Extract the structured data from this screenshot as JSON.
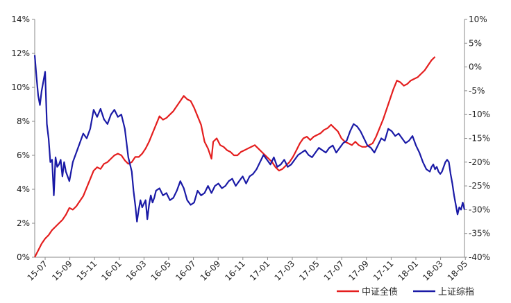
{
  "chart_data": {
    "type": "line",
    "x_categories": [
      "15-07",
      "15-09",
      "15-11",
      "16-01",
      "16-03",
      "16-05",
      "16-07",
      "16-09",
      "16-11",
      "17-01",
      "17-03",
      "17-05",
      "17-07",
      "17-09",
      "17-11",
      "18-01",
      "18-03",
      "18-05"
    ],
    "y_left": {
      "min": 0,
      "max": 14,
      "step": 2,
      "unit": "%",
      "ticks": [
        "0%",
        "2%",
        "4%",
        "6%",
        "8%",
        "10%",
        "12%",
        "14%"
      ]
    },
    "y_right": {
      "min": -40,
      "max": 10,
      "step": 5,
      "unit": "%",
      "ticks": [
        "-40%",
        "-35%",
        "-30%",
        "-25%",
        "-20%",
        "-15%",
        "-10%",
        "-5%",
        "0%",
        "5%",
        "10%"
      ]
    },
    "series": [
      {
        "name": "中证全债",
        "axis": "left",
        "color": "#e41e1e",
        "points": [
          [
            0,
            0.0
          ],
          [
            0.2,
            0.4
          ],
          [
            0.4,
            0.8
          ],
          [
            0.6,
            1.1
          ],
          [
            0.8,
            1.3
          ],
          [
            1.0,
            1.6
          ],
          [
            1.2,
            1.8
          ],
          [
            1.4,
            2.0
          ],
          [
            1.6,
            2.2
          ],
          [
            1.8,
            2.5
          ],
          [
            2.0,
            2.9
          ],
          [
            2.2,
            2.8
          ],
          [
            2.4,
            3.0
          ],
          [
            2.6,
            3.3
          ],
          [
            2.8,
            3.6
          ],
          [
            3.0,
            4.1
          ],
          [
            3.2,
            4.6
          ],
          [
            3.4,
            5.1
          ],
          [
            3.6,
            5.3
          ],
          [
            3.8,
            5.2
          ],
          [
            4.0,
            5.5
          ],
          [
            4.2,
            5.6
          ],
          [
            4.4,
            5.8
          ],
          [
            4.6,
            6.0
          ],
          [
            4.8,
            6.1
          ],
          [
            5.0,
            6.0
          ],
          [
            5.2,
            5.7
          ],
          [
            5.4,
            5.5
          ],
          [
            5.6,
            5.6
          ],
          [
            5.8,
            5.9
          ],
          [
            6.0,
            5.9
          ],
          [
            6.2,
            6.1
          ],
          [
            6.4,
            6.4
          ],
          [
            6.6,
            6.8
          ],
          [
            6.8,
            7.3
          ],
          [
            7.0,
            7.8
          ],
          [
            7.2,
            8.3
          ],
          [
            7.4,
            8.1
          ],
          [
            7.6,
            8.2
          ],
          [
            7.8,
            8.4
          ],
          [
            8.0,
            8.6
          ],
          [
            8.2,
            8.9
          ],
          [
            8.4,
            9.2
          ],
          [
            8.6,
            9.5
          ],
          [
            8.8,
            9.3
          ],
          [
            9.0,
            9.2
          ],
          [
            9.2,
            8.8
          ],
          [
            9.4,
            8.3
          ],
          [
            9.6,
            7.8
          ],
          [
            9.8,
            6.8
          ],
          [
            10.0,
            6.4
          ],
          [
            10.2,
            5.8
          ],
          [
            10.3,
            6.8
          ],
          [
            10.5,
            7.0
          ],
          [
            10.7,
            6.6
          ],
          [
            10.9,
            6.5
          ],
          [
            11.1,
            6.3
          ],
          [
            11.3,
            6.2
          ],
          [
            11.5,
            6.0
          ],
          [
            11.7,
            6.0
          ],
          [
            11.9,
            6.2
          ],
          [
            12.1,
            6.3
          ],
          [
            12.3,
            6.4
          ],
          [
            12.5,
            6.5
          ],
          [
            12.7,
            6.6
          ],
          [
            12.9,
            6.4
          ],
          [
            13.1,
            6.2
          ],
          [
            13.3,
            6.0
          ],
          [
            13.5,
            5.8
          ],
          [
            13.7,
            5.6
          ],
          [
            13.9,
            5.3
          ],
          [
            14.1,
            5.1
          ],
          [
            14.3,
            5.2
          ],
          [
            14.5,
            5.4
          ],
          [
            14.7,
            5.6
          ],
          [
            14.9,
            5.9
          ],
          [
            15.1,
            6.3
          ],
          [
            15.3,
            6.7
          ],
          [
            15.5,
            7.0
          ],
          [
            15.7,
            7.1
          ],
          [
            15.9,
            6.9
          ],
          [
            16.1,
            7.1
          ],
          [
            16.3,
            7.2
          ],
          [
            16.5,
            7.3
          ],
          [
            16.7,
            7.5
          ],
          [
            16.9,
            7.6
          ],
          [
            17.1,
            7.8
          ],
          [
            17.3,
            7.6
          ],
          [
            17.5,
            7.4
          ],
          [
            17.7,
            7.0
          ],
          [
            17.9,
            6.8
          ],
          [
            18.1,
            6.7
          ],
          [
            18.3,
            6.6
          ],
          [
            18.5,
            6.8
          ],
          [
            18.7,
            6.6
          ],
          [
            18.9,
            6.5
          ],
          [
            19.1,
            6.5
          ],
          [
            19.3,
            6.6
          ],
          [
            19.5,
            6.7
          ],
          [
            19.7,
            7.1
          ],
          [
            19.9,
            7.6
          ],
          [
            20.1,
            8.1
          ],
          [
            20.3,
            8.7
          ],
          [
            20.5,
            9.3
          ],
          [
            20.7,
            9.9
          ],
          [
            20.9,
            10.4
          ],
          [
            21.1,
            10.3
          ],
          [
            21.3,
            10.1
          ],
          [
            21.5,
            10.2
          ],
          [
            21.7,
            10.4
          ],
          [
            21.9,
            10.5
          ],
          [
            22.1,
            10.6
          ],
          [
            22.3,
            10.8
          ],
          [
            22.5,
            11.0
          ],
          [
            22.7,
            11.3
          ],
          [
            22.9,
            11.6
          ],
          [
            23.1,
            11.8
          ]
        ]
      },
      {
        "name": "上证综指",
        "axis": "right",
        "color": "#1a1aa6",
        "points": [
          [
            0,
            2.5
          ],
          [
            0.1,
            -2.0
          ],
          [
            0.2,
            -6.0
          ],
          [
            0.3,
            -8.0
          ],
          [
            0.4,
            -5.0
          ],
          [
            0.5,
            -3.0
          ],
          [
            0.6,
            -1.0
          ],
          [
            0.7,
            -12.0
          ],
          [
            0.8,
            -15.0
          ],
          [
            0.9,
            -20.0
          ],
          [
            1.0,
            -19.5
          ],
          [
            1.1,
            -27.0
          ],
          [
            1.2,
            -19.0
          ],
          [
            1.3,
            -21.0
          ],
          [
            1.4,
            -20.5
          ],
          [
            1.5,
            -19.5
          ],
          [
            1.6,
            -23.0
          ],
          [
            1.7,
            -20.0
          ],
          [
            1.8,
            -22.0
          ],
          [
            2.0,
            -24.0
          ],
          [
            2.2,
            -20.0
          ],
          [
            2.4,
            -18.0
          ],
          [
            2.6,
            -16.0
          ],
          [
            2.8,
            -14.0
          ],
          [
            3.0,
            -15.0
          ],
          [
            3.2,
            -13.0
          ],
          [
            3.4,
            -9.0
          ],
          [
            3.6,
            -10.5
          ],
          [
            3.8,
            -8.8
          ],
          [
            4.0,
            -11.0
          ],
          [
            4.2,
            -12.0
          ],
          [
            4.4,
            -10.0
          ],
          [
            4.6,
            -9.0
          ],
          [
            4.8,
            -10.5
          ],
          [
            5.0,
            -10.0
          ],
          [
            5.2,
            -13.0
          ],
          [
            5.4,
            -19.0
          ],
          [
            5.6,
            -22.0
          ],
          [
            5.7,
            -26.0
          ],
          [
            5.8,
            -29.0
          ],
          [
            5.9,
            -32.5
          ],
          [
            6.0,
            -30.0
          ],
          [
            6.1,
            -28.0
          ],
          [
            6.2,
            -29.5
          ],
          [
            6.4,
            -28.0
          ],
          [
            6.5,
            -32.0
          ],
          [
            6.6,
            -29.0
          ],
          [
            6.7,
            -27.0
          ],
          [
            6.8,
            -28.5
          ],
          [
            6.9,
            -27.5
          ],
          [
            7.0,
            -26.0
          ],
          [
            7.2,
            -25.5
          ],
          [
            7.4,
            -27.0
          ],
          [
            7.6,
            -26.5
          ],
          [
            7.8,
            -28.0
          ],
          [
            8.0,
            -27.5
          ],
          [
            8.2,
            -26.0
          ],
          [
            8.4,
            -24.0
          ],
          [
            8.6,
            -25.5
          ],
          [
            8.8,
            -28.0
          ],
          [
            9.0,
            -29.0
          ],
          [
            9.2,
            -28.5
          ],
          [
            9.4,
            -26.0
          ],
          [
            9.6,
            -27.0
          ],
          [
            9.8,
            -26.5
          ],
          [
            10.0,
            -25.0
          ],
          [
            10.2,
            -26.5
          ],
          [
            10.4,
            -25.0
          ],
          [
            10.6,
            -24.5
          ],
          [
            10.8,
            -25.5
          ],
          [
            11.0,
            -25.0
          ],
          [
            11.2,
            -24.0
          ],
          [
            11.4,
            -23.5
          ],
          [
            11.6,
            -25.0
          ],
          [
            11.8,
            -24.0
          ],
          [
            12.0,
            -23.0
          ],
          [
            12.2,
            -24.5
          ],
          [
            12.4,
            -23.0
          ],
          [
            12.6,
            -22.5
          ],
          [
            12.8,
            -21.5
          ],
          [
            13.0,
            -20.0
          ],
          [
            13.2,
            -18.5
          ],
          [
            13.4,
            -19.5
          ],
          [
            13.6,
            -20.5
          ],
          [
            13.8,
            -19.0
          ],
          [
            14.0,
            -21.0
          ],
          [
            14.2,
            -20.5
          ],
          [
            14.4,
            -19.5
          ],
          [
            14.6,
            -21.0
          ],
          [
            14.8,
            -20.5
          ],
          [
            15.0,
            -19.5
          ],
          [
            15.2,
            -18.5
          ],
          [
            15.4,
            -18.0
          ],
          [
            15.6,
            -17.5
          ],
          [
            15.8,
            -18.5
          ],
          [
            16.0,
            -19.0
          ],
          [
            16.2,
            -18.0
          ],
          [
            16.4,
            -17.0
          ],
          [
            16.6,
            -17.5
          ],
          [
            16.8,
            -18.0
          ],
          [
            17.0,
            -17.0
          ],
          [
            17.2,
            -16.5
          ],
          [
            17.4,
            -18.0
          ],
          [
            17.6,
            -17.0
          ],
          [
            17.8,
            -16.0
          ],
          [
            18.0,
            -15.5
          ],
          [
            18.2,
            -13.5
          ],
          [
            18.4,
            -12.0
          ],
          [
            18.6,
            -12.5
          ],
          [
            18.8,
            -13.5
          ],
          [
            19.0,
            -15.0
          ],
          [
            19.2,
            -16.5
          ],
          [
            19.4,
            -17.0
          ],
          [
            19.6,
            -18.0
          ],
          [
            19.8,
            -16.5
          ],
          [
            20.0,
            -15.0
          ],
          [
            20.2,
            -15.5
          ],
          [
            20.4,
            -13.0
          ],
          [
            20.6,
            -13.5
          ],
          [
            20.8,
            -14.5
          ],
          [
            21.0,
            -14.0
          ],
          [
            21.2,
            -15.0
          ],
          [
            21.4,
            -16.0
          ],
          [
            21.6,
            -15.5
          ],
          [
            21.8,
            -14.5
          ],
          [
            22.0,
            -16.5
          ],
          [
            22.2,
            -18.0
          ],
          [
            22.4,
            -20.0
          ],
          [
            22.6,
            -21.5
          ],
          [
            22.8,
            -22.0
          ],
          [
            22.9,
            -21.0
          ],
          [
            23.0,
            -20.5
          ],
          [
            23.1,
            -21.5
          ],
          [
            23.2,
            -21.0
          ],
          [
            23.3,
            -22.0
          ],
          [
            23.4,
            -22.5
          ],
          [
            23.5,
            -22.0
          ],
          [
            23.6,
            -21.0
          ],
          [
            23.7,
            -20.0
          ],
          [
            23.8,
            -19.5
          ],
          [
            23.9,
            -20.0
          ],
          [
            24.0,
            -22.5
          ],
          [
            24.1,
            -24.5
          ],
          [
            24.2,
            -27.0
          ],
          [
            24.3,
            -29.0
          ],
          [
            24.4,
            -31.0
          ],
          [
            24.5,
            -29.5
          ],
          [
            24.6,
            -30.0
          ],
          [
            24.7,
            -28.5
          ],
          [
            24.8,
            -30.0
          ]
        ]
      }
    ],
    "legend_position": "bottom-right",
    "grid": false
  }
}
